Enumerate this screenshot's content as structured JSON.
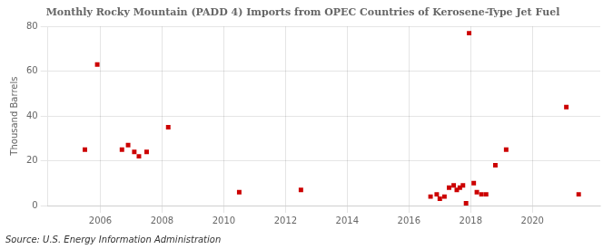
{
  "chart_data": {
    "type": "scatter",
    "title": "Monthly Rocky Mountain (PADD 4) Imports from OPEC Countries of Kerosene-Type Jet Fuel",
    "ylabel": "Thousand Barrels",
    "source": "Source: U.S. Energy Information Administration",
    "x": [
      2005.5,
      2005.9,
      2006.7,
      2006.9,
      2007.1,
      2007.25,
      2007.5,
      2008.2,
      2010.5,
      2012.5,
      2016.7,
      2016.9,
      2017.0,
      2017.15,
      2017.3,
      2017.45,
      2017.55,
      2017.65,
      2017.75,
      2017.85,
      2017.95,
      2018.1,
      2018.2,
      2018.35,
      2018.5,
      2018.8,
      2019.15,
      2021.1,
      2021.5
    ],
    "values": [
      25,
      63,
      25,
      27,
      24,
      22,
      24,
      35,
      6,
      7,
      4,
      5,
      3,
      4,
      8,
      9,
      7,
      8,
      9,
      1,
      77,
      10,
      6,
      5,
      5,
      18,
      25,
      44,
      5
    ],
    "color": "#cc0000",
    "marker": "square",
    "xlim": [
      2004.3,
      2022.2
    ],
    "ylim": [
      0,
      80
    ],
    "xticks": [
      2006,
      2008,
      2010,
      2012,
      2014,
      2016,
      2018,
      2020
    ],
    "yticks": [
      0,
      20,
      40,
      60,
      80
    ],
    "grid": true
  }
}
